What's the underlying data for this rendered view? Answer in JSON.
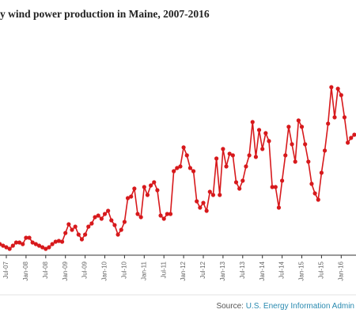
{
  "chart_data": {
    "type": "line",
    "title": "y wind power production in Maine, 2007-2016",
    "source": {
      "label": "Source:",
      "link": "U.S. Energy Information Admin"
    },
    "categories": [
      null,
      null,
      "Jul-07",
      null,
      null,
      null,
      null,
      null,
      "Jan-08",
      null,
      null,
      null,
      null,
      null,
      "Jul-08",
      null,
      null,
      null,
      null,
      null,
      "Jan-09",
      null,
      null,
      null,
      null,
      null,
      "Jul-09",
      null,
      null,
      null,
      null,
      null,
      "Jan-10",
      null,
      null,
      null,
      null,
      null,
      "Jul-10",
      null,
      null,
      null,
      null,
      null,
      "Jan-11",
      null,
      null,
      null,
      null,
      null,
      "Jul-11",
      null,
      null,
      null,
      null,
      null,
      "Jan-12",
      null,
      null,
      null,
      null,
      null,
      "Jul-12",
      null,
      null,
      null,
      null,
      null,
      "Jan-13",
      null,
      null,
      null,
      null,
      null,
      "Jul-13",
      null,
      null,
      null,
      null,
      null,
      "Jan-14",
      null,
      null,
      null,
      null,
      null,
      "Jul-14",
      null,
      null,
      null,
      null,
      null,
      "Jan-15",
      null,
      null,
      null,
      null,
      null,
      "Jul-15",
      null,
      null,
      null,
      null,
      null,
      "Jan-16",
      null,
      null,
      null,
      null
    ],
    "series": [
      {
        "color": "#d7191c",
        "values": [
          14,
          12,
          10,
          8,
          12,
          16,
          16,
          14,
          22,
          22,
          16,
          14,
          12,
          10,
          8,
          10,
          14,
          17,
          18,
          17,
          28,
          39,
          32,
          36,
          26,
          20,
          26,
          36,
          40,
          48,
          50,
          46,
          52,
          56,
          44,
          38,
          26,
          32,
          42,
          72,
          74,
          84,
          52,
          48,
          86,
          76,
          88,
          92,
          82,
          50,
          46,
          52,
          52,
          106,
          110,
          112,
          136,
          126,
          110,
          106,
          68,
          60,
          66,
          56,
          80,
          76,
          122,
          76,
          134,
          112,
          128,
          126,
          92,
          84,
          94,
          112,
          126,
          168,
          124,
          158,
          134,
          154,
          144,
          86,
          86,
          60,
          94,
          126,
          162,
          140,
          118,
          170,
          162,
          140,
          118,
          90,
          78,
          70,
          104,
          132,
          166,
          212,
          174,
          210,
          202,
          174,
          142,
          148,
          152
        ]
      }
    ],
    "ylim": [
      0,
      322
    ]
  }
}
